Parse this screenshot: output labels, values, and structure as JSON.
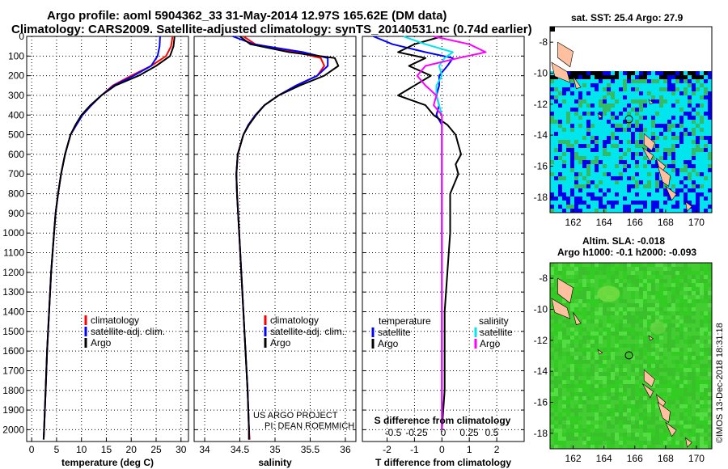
{
  "titles": {
    "line1": "Argo profile: aoml 5904362_33 31-May-2014 12.97S 165.62E (DM data)",
    "line2": "Climatology: CARS2009. Satellite-adjusted climatology: synTS_20140531.nc (0.74d earlier)"
  },
  "credit": "©IMOS 13-Dec-2018 18:31:18",
  "project": {
    "line1": "US ARGO PROJECT",
    "line2": "PI: DEAN ROEMMICH"
  },
  "depth_ticks": [
    "0",
    "100",
    "200",
    "300",
    "400",
    "500",
    "600",
    "700",
    "800",
    "900",
    "1000",
    "1100",
    "1200",
    "1300",
    "1400",
    "1500",
    "1600",
    "1700",
    "1800",
    "1900",
    "2000"
  ],
  "colors": {
    "climatology": "#ff0000",
    "satellite": "#0000ff",
    "argo": "#000000",
    "cyan": "#00e5ee",
    "magenta": "#ff00ff"
  },
  "chart_data": [
    {
      "type": "line",
      "title": "",
      "xlabel": "temperature (deg C)",
      "ylabel": "",
      "xlim": [
        -1,
        31.5
      ],
      "ylim": [
        2060,
        0
      ],
      "xticks": [
        "0",
        "5",
        "10",
        "15",
        "20",
        "25",
        "30"
      ],
      "xtick_values": [
        0,
        5,
        10,
        15,
        20,
        25,
        30
      ],
      "legend": [
        "climatology",
        "satellite-adj. clim.",
        "Argo"
      ],
      "depth": [
        0,
        50,
        100,
        150,
        200,
        250,
        300,
        350,
        400,
        450,
        500,
        600,
        700,
        800,
        900,
        1000,
        1200,
        1400,
        1600,
        1800,
        2000,
        2050
      ],
      "series": [
        {
          "name": "climatology",
          "values": [
            28.3,
            28.0,
            27.0,
            24.0,
            20.0,
            16.3,
            14.0,
            12.0,
            10.2,
            9.0,
            7.8,
            6.7,
            5.9,
            5.3,
            4.8,
            4.5,
            3.9,
            3.5,
            3.1,
            2.8,
            2.5,
            2.4
          ]
        },
        {
          "name": "satellite-adj. clim.",
          "values": [
            25.8,
            25.7,
            25.3,
            24.0,
            20.5,
            16.5,
            14.0,
            12.0,
            10.2,
            9.0,
            7.8,
            6.7,
            5.9,
            5.3,
            4.8,
            4.5,
            3.9,
            3.5,
            3.1,
            2.8,
            2.5,
            2.4
          ]
        },
        {
          "name": "Argo",
          "values": [
            28.7,
            28.5,
            27.8,
            25.0,
            21.5,
            16.8,
            14.0,
            11.8,
            10.0,
            8.8,
            7.8,
            6.7,
            5.9,
            5.3,
            4.8,
            4.5,
            3.9,
            3.5,
            3.1,
            2.8,
            2.5,
            2.4
          ]
        }
      ]
    },
    {
      "type": "line",
      "title": "",
      "xlabel": "salinity",
      "ylabel": "",
      "xlim": [
        33.85,
        36.15
      ],
      "ylim": [
        2060,
        0
      ],
      "xticks": [
        "34",
        "34.5",
        "35",
        "35.5",
        "36"
      ],
      "xtick_values": [
        34,
        34.5,
        35,
        35.5,
        36
      ],
      "legend": [
        "climatology",
        "satellite-adj. clim.",
        "Argo"
      ],
      "depth": [
        0,
        40,
        80,
        110,
        150,
        200,
        250,
        300,
        350,
        400,
        450,
        500,
        600,
        700,
        800,
        1000,
        1200,
        1400,
        1600,
        1800,
        2000,
        2050
      ],
      "series": [
        {
          "name": "climatology",
          "values": [
            34.55,
            34.72,
            35.3,
            35.65,
            35.7,
            35.6,
            35.3,
            35.05,
            34.85,
            34.72,
            34.62,
            34.55,
            34.47,
            34.45,
            34.46,
            34.49,
            34.52,
            34.55,
            34.58,
            34.61,
            34.63,
            34.64
          ]
        },
        {
          "name": "satellite-adj. clim.",
          "values": [
            34.4,
            34.7,
            35.4,
            35.75,
            35.75,
            35.6,
            35.3,
            35.05,
            34.85,
            34.72,
            34.62,
            34.55,
            34.47,
            34.45,
            34.46,
            34.49,
            34.52,
            34.55,
            34.58,
            34.61,
            34.63,
            34.63
          ]
        },
        {
          "name": "Argo",
          "values": [
            34.5,
            34.65,
            35.2,
            35.85,
            35.9,
            35.7,
            35.35,
            35.05,
            34.85,
            34.73,
            34.63,
            34.55,
            34.47,
            34.45,
            34.46,
            34.49,
            34.52,
            34.55,
            34.58,
            34.61,
            34.63,
            34.63
          ]
        }
      ]
    },
    {
      "type": "line",
      "title": "",
      "xlabel": "T difference from climatology",
      "ylabel": "",
      "xlim": [
        -2.9,
        3.0
      ],
      "ylim": [
        2060,
        0
      ],
      "xticks": [
        "-2",
        "-1",
        "0",
        "1",
        "2"
      ],
      "xtick_values": [
        -2,
        -1,
        0,
        1,
        2
      ],
      "sticks_label": "S difference from climatology",
      "sticks": [
        "-0.5",
        "-0.25",
        "0",
        "0.25",
        "0.5"
      ],
      "legend_left": {
        "heading": "temperature",
        "items": [
          "satellite",
          "Argo"
        ]
      },
      "legend_right": {
        "heading": "salinity",
        "items": [
          "satellite",
          "Argo"
        ]
      },
      "depth": [
        0,
        40,
        80,
        110,
        150,
        200,
        250,
        300,
        350,
        400,
        450,
        500,
        550,
        600,
        650,
        700,
        800,
        900,
        1000,
        1200,
        1400,
        1600,
        1800,
        2000
      ],
      "series": [
        {
          "name": "temperature satellite",
          "values": [
            -2.5,
            -1.8,
            -0.6,
            0.4,
            0.2,
            -0.1,
            -0.1,
            -0.2,
            -0.1,
            -0.2,
            0.0,
            0.0,
            0.0,
            0.0,
            0.0,
            0.0,
            0.0,
            0.0,
            0.0,
            0.0,
            0.0,
            0.0,
            0.0,
            0.0
          ]
        },
        {
          "name": "temperature Argo",
          "values": [
            0.0,
            -1.0,
            -1.6,
            -0.6,
            -1.2,
            -0.4,
            -1.0,
            -1.6,
            -0.6,
            -0.3,
            0.2,
            0.5,
            0.6,
            0.7,
            0.5,
            0.6,
            0.3,
            0.3,
            0.3,
            0.2,
            0.1,
            0.1,
            0.1,
            0.0
          ]
        },
        {
          "name": "salinity satellite",
          "values": [
            -1.4,
            -0.6,
            0.4,
            0.1,
            -0.1,
            0.0,
            -0.2,
            -0.2,
            -0.1,
            0.0,
            0.0,
            0.0,
            0.0,
            0.0,
            0.0,
            0.0,
            0.0,
            0.0,
            0.0,
            0.0,
            0.0,
            0.0,
            0.0,
            0.0
          ]
        },
        {
          "name": "salinity Argo",
          "values": [
            -0.3,
            1.0,
            1.6,
            0.6,
            -0.6,
            -0.9,
            -0.6,
            -0.2,
            -0.3,
            0.0,
            0.0,
            0.0,
            0.0,
            0.0,
            0.0,
            0.0,
            0.0,
            0.0,
            0.0,
            0.0,
            0.0,
            0.0,
            0.0,
            0.0
          ]
        }
      ]
    },
    {
      "type": "heatmap",
      "title": "sat. SST: 25.4 Argo: 27.9",
      "xlabel": "",
      "ylabel": "",
      "xticks": [
        "162",
        "164",
        "166",
        "168",
        "170"
      ],
      "yticks": [
        "-8",
        "-10",
        "-12",
        "-14",
        "-16",
        "-18"
      ],
      "xlim": [
        160.5,
        171
      ],
      "ylim": [
        -19,
        -7
      ],
      "float_position": {
        "lon": 165.62,
        "lat": -12.97
      }
    },
    {
      "type": "heatmap",
      "title": "Altim. SLA: -0.018",
      "subtitle": "Argo h1000: -0.1 h2000: -0.093",
      "xlabel": "",
      "ylabel": "",
      "xticks": [
        "162",
        "164",
        "166",
        "168",
        "170"
      ],
      "yticks": [
        "-8",
        "-10",
        "-12",
        "-14",
        "-16",
        "-18"
      ],
      "xlim": [
        160.5,
        171
      ],
      "ylim": [
        -19,
        -7
      ],
      "float_position": {
        "lon": 165.62,
        "lat": -12.97
      }
    }
  ]
}
